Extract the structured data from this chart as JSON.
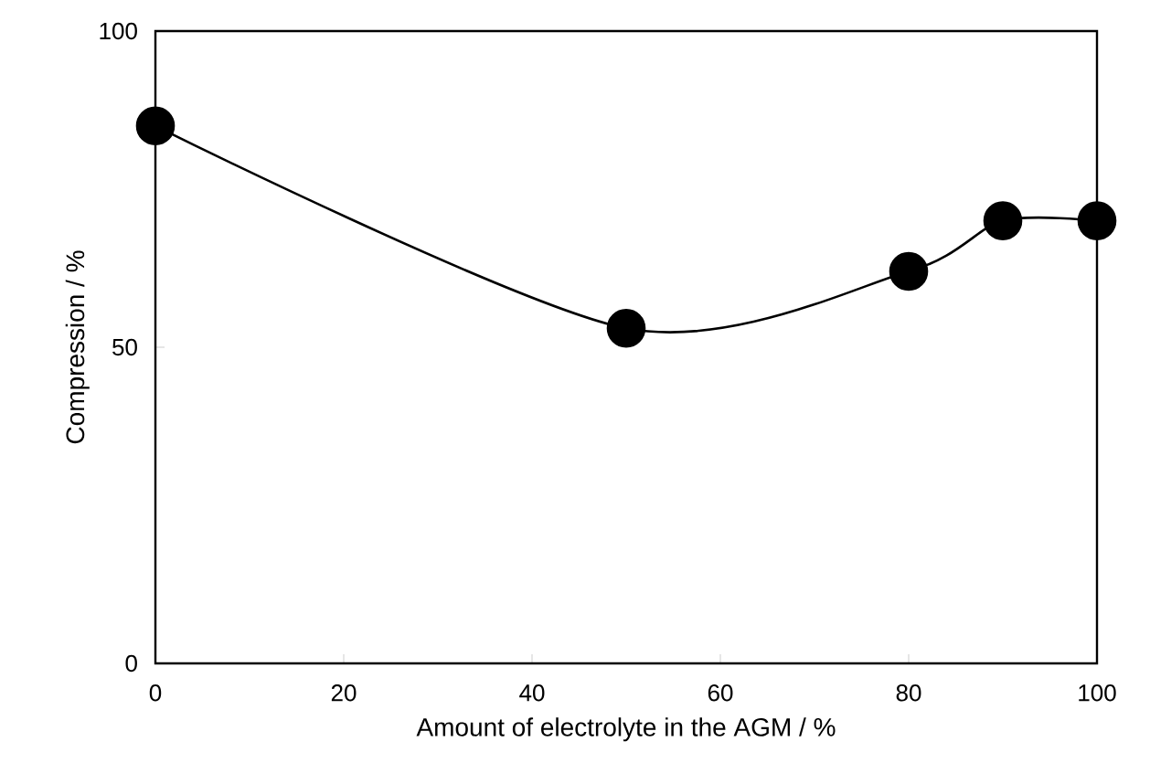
{
  "chart_data": {
    "type": "line",
    "xlabel": "Amount of electrolyte in the AGM / %",
    "ylabel": "Compression / %",
    "x": [
      0,
      50,
      80,
      90,
      100
    ],
    "series": [
      {
        "color": "#000000",
        "values": [
          85,
          53,
          62,
          70,
          70
        ]
      }
    ],
    "xlim": [
      0,
      100
    ],
    "ylim": [
      0,
      100
    ],
    "xticks": [
      0,
      20,
      40,
      60,
      80,
      100
    ],
    "yticks": [
      0,
      50,
      100
    ],
    "marker": "circle",
    "line_style": "solid"
  }
}
